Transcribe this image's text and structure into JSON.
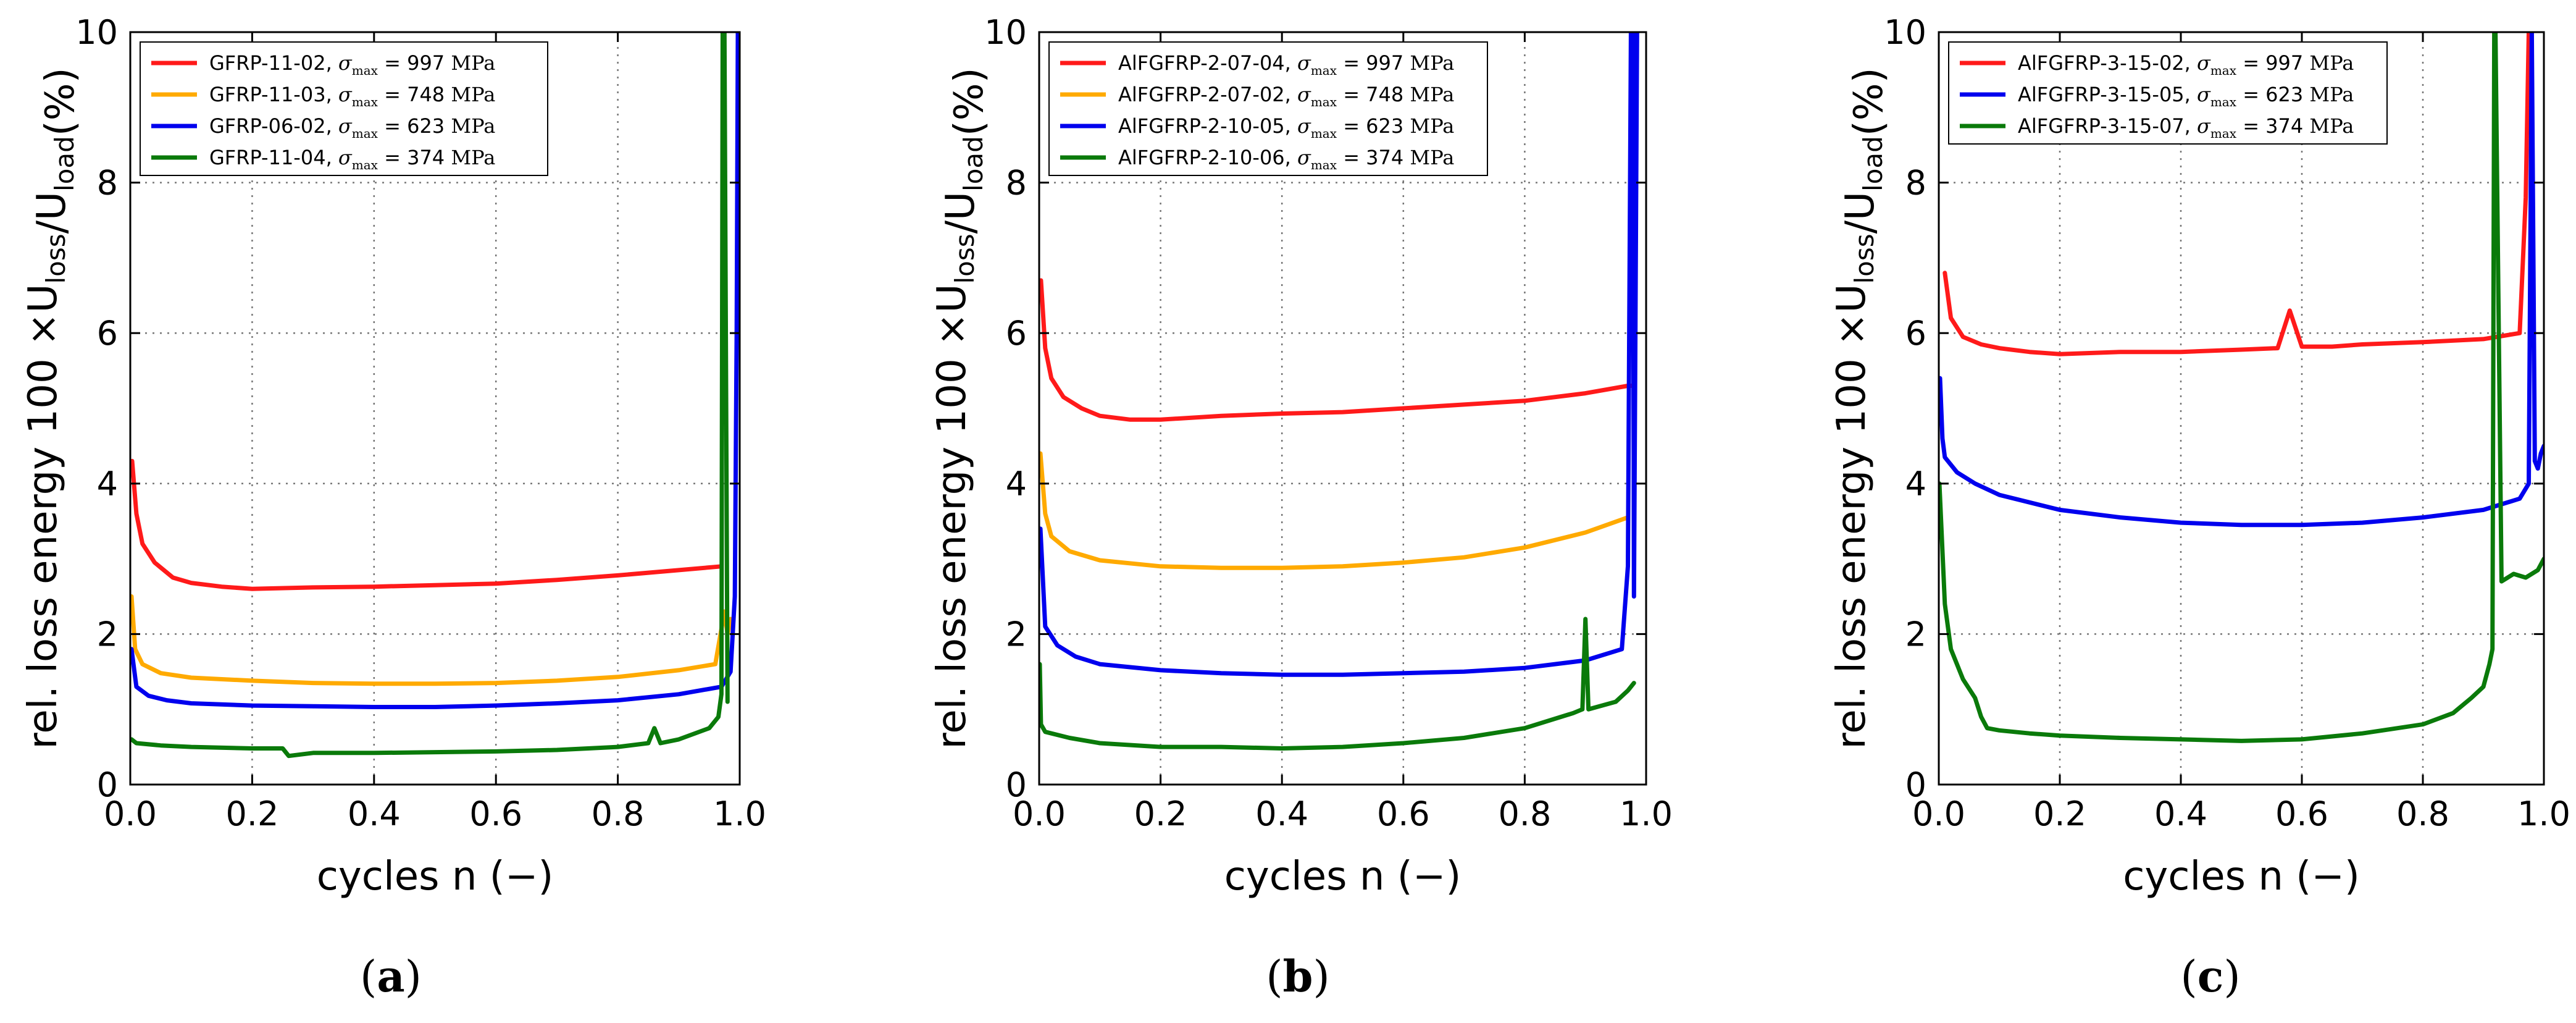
{
  "chart_data": [
    {
      "type": "line",
      "panel_label": "a",
      "xlabel": "cycles n (−)",
      "ylabel": "rel. loss energy 100 ×U_loss/U_load(%)",
      "xlim": [
        0.0,
        1.0
      ],
      "ylim": [
        0,
        10
      ],
      "xticks": [
        "0.0",
        "0.2",
        "0.4",
        "0.6",
        "0.8",
        "1.0"
      ],
      "yticks": [
        "0",
        "2",
        "4",
        "6",
        "8",
        "10"
      ],
      "grid": true,
      "legend_position": "top-left",
      "series": [
        {
          "name": "GFRP-11-02, σmax = 997 MPa",
          "specimen": "GFRP-11-02",
          "stress": "997 MPa",
          "color": "#ff1a1a",
          "x": [
            0.003,
            0.01,
            0.02,
            0.04,
            0.07,
            0.1,
            0.15,
            0.2,
            0.3,
            0.4,
            0.5,
            0.6,
            0.7,
            0.8,
            0.9,
            0.97
          ],
          "y": [
            4.3,
            3.6,
            3.2,
            2.95,
            2.75,
            2.68,
            2.63,
            2.6,
            2.62,
            2.63,
            2.65,
            2.67,
            2.72,
            2.78,
            2.85,
            2.9
          ]
        },
        {
          "name": "GFRP-11-03, σmax = 748 MPa",
          "specimen": "GFRP-11-03",
          "stress": "748 MPa",
          "color": "#ffaa00",
          "x": [
            0.002,
            0.008,
            0.02,
            0.05,
            0.1,
            0.2,
            0.3,
            0.4,
            0.5,
            0.6,
            0.7,
            0.8,
            0.9,
            0.96,
            0.975,
            0.98,
            0.985
          ],
          "y": [
            2.5,
            1.8,
            1.6,
            1.48,
            1.42,
            1.38,
            1.35,
            1.34,
            1.34,
            1.35,
            1.38,
            1.43,
            1.52,
            1.6,
            2.3,
            2.0,
            2.2
          ]
        },
        {
          "name": "GFRP-06-02, σmax = 623 MPa",
          "specimen": "GFRP-06-02",
          "stress": "623 MPa",
          "color": "#0000ee",
          "x": [
            0.002,
            0.01,
            0.03,
            0.06,
            0.1,
            0.2,
            0.3,
            0.4,
            0.5,
            0.6,
            0.7,
            0.8,
            0.9,
            0.97,
            0.985,
            0.992,
            0.995,
            0.997,
            1.0
          ],
          "y": [
            1.8,
            1.3,
            1.18,
            1.12,
            1.08,
            1.05,
            1.04,
            1.03,
            1.03,
            1.05,
            1.08,
            1.12,
            1.2,
            1.3,
            1.5,
            2.5,
            6.0,
            10.0,
            10.0
          ]
        },
        {
          "name": "GFRP-11-04, σmax = 374 MPa",
          "specimen": "GFRP-11-04",
          "stress": "374 MPa",
          "color": "#0a7a0a",
          "x": [
            0.002,
            0.01,
            0.05,
            0.1,
            0.2,
            0.25,
            0.26,
            0.3,
            0.4,
            0.5,
            0.6,
            0.7,
            0.8,
            0.85,
            0.86,
            0.87,
            0.9,
            0.95,
            0.965,
            0.97,
            0.972,
            0.975,
            0.98
          ],
          "y": [
            0.6,
            0.55,
            0.52,
            0.5,
            0.48,
            0.48,
            0.38,
            0.42,
            0.42,
            0.43,
            0.44,
            0.46,
            0.5,
            0.55,
            0.75,
            0.55,
            0.6,
            0.75,
            0.9,
            1.2,
            10.0,
            10.0,
            1.1
          ]
        }
      ]
    },
    {
      "type": "line",
      "panel_label": "b",
      "xlabel": "cycles n (−)",
      "ylabel": "rel. loss energy 100 ×U_loss/U_load(%)",
      "xlim": [
        0.0,
        1.0
      ],
      "ylim": [
        0,
        10
      ],
      "xticks": [
        "0.0",
        "0.2",
        "0.4",
        "0.6",
        "0.8",
        "1.0"
      ],
      "yticks": [
        "0",
        "2",
        "4",
        "6",
        "8",
        "10"
      ],
      "grid": true,
      "legend_position": "top-left",
      "series": [
        {
          "name": "AlFGFRP-2-07-04, σmax = 997 MPa",
          "specimen": "AlFGFRP-2-07-04",
          "stress": "997 MPa",
          "color": "#ff1a1a",
          "x": [
            0.003,
            0.01,
            0.02,
            0.04,
            0.07,
            0.1,
            0.15,
            0.2,
            0.3,
            0.4,
            0.5,
            0.6,
            0.7,
            0.8,
            0.9,
            0.97,
            0.98
          ],
          "y": [
            6.7,
            5.8,
            5.4,
            5.15,
            5.0,
            4.9,
            4.85,
            4.85,
            4.9,
            4.93,
            4.95,
            5.0,
            5.05,
            5.1,
            5.2,
            5.3,
            5.3
          ]
        },
        {
          "name": "AlFGFRP-2-07-02, σmax = 748 MPa",
          "specimen": "AlFGFRP-2-07-02",
          "stress": "748 MPa",
          "color": "#ffaa00",
          "x": [
            0.002,
            0.01,
            0.02,
            0.05,
            0.1,
            0.2,
            0.3,
            0.4,
            0.5,
            0.6,
            0.7,
            0.8,
            0.9,
            0.97
          ],
          "y": [
            4.4,
            3.6,
            3.3,
            3.1,
            2.98,
            2.9,
            2.88,
            2.88,
            2.9,
            2.95,
            3.02,
            3.15,
            3.35,
            3.55
          ]
        },
        {
          "name": "AlFGFRP-2-10-05, σmax = 623 MPa",
          "specimen": "AlFGFRP-2-10-05",
          "stress": "623 MPa",
          "color": "#0000ee",
          "x": [
            0.002,
            0.01,
            0.03,
            0.06,
            0.1,
            0.2,
            0.3,
            0.4,
            0.5,
            0.6,
            0.7,
            0.8,
            0.9,
            0.96,
            0.97,
            0.975,
            0.978,
            0.98,
            0.985
          ],
          "y": [
            3.4,
            2.1,
            1.85,
            1.7,
            1.6,
            1.52,
            1.48,
            1.46,
            1.46,
            1.48,
            1.5,
            1.55,
            1.65,
            1.8,
            2.9,
            10.0,
            10.0,
            2.5,
            10.0
          ]
        },
        {
          "name": "AlFGFRP-2-10-06, σmax = 374 MPa",
          "specimen": "AlFGFRP-2-10-06",
          "stress": "374 MPa",
          "color": "#0a7a0a",
          "x": [
            0.001,
            0.003,
            0.01,
            0.05,
            0.1,
            0.2,
            0.3,
            0.4,
            0.5,
            0.6,
            0.7,
            0.8,
            0.88,
            0.895,
            0.9,
            0.905,
            0.95,
            0.97,
            0.98
          ],
          "y": [
            1.6,
            0.8,
            0.7,
            0.62,
            0.55,
            0.5,
            0.5,
            0.48,
            0.5,
            0.55,
            0.62,
            0.75,
            0.95,
            1.0,
            2.2,
            1.0,
            1.1,
            1.25,
            1.35
          ]
        }
      ]
    },
    {
      "type": "line",
      "panel_label": "c",
      "xlabel": "cycles n (−)",
      "ylabel": "rel. loss energy 100 ×U_loss/U_load(%)",
      "xlim": [
        0.0,
        1.0
      ],
      "ylim": [
        0,
        10
      ],
      "xticks": [
        "0.0",
        "0.2",
        "0.4",
        "0.6",
        "0.8",
        "1.0"
      ],
      "yticks": [
        "0",
        "2",
        "4",
        "6",
        "8",
        "10"
      ],
      "grid": true,
      "legend_position": "top-left",
      "series": [
        {
          "name": "AlFGFRP-3-15-02, σmax = 997 MPa",
          "specimen": "AlFGFRP-3-15-02",
          "stress": "997 MPa",
          "color": "#ff1a1a",
          "x": [
            0.01,
            0.02,
            0.04,
            0.07,
            0.1,
            0.15,
            0.2,
            0.3,
            0.4,
            0.5,
            0.56,
            0.58,
            0.6,
            0.65,
            0.7,
            0.8,
            0.9,
            0.96,
            0.97,
            0.975
          ],
          "y": [
            6.8,
            6.2,
            5.95,
            5.85,
            5.8,
            5.75,
            5.72,
            5.75,
            5.75,
            5.78,
            5.8,
            6.3,
            5.82,
            5.82,
            5.85,
            5.88,
            5.92,
            6.0,
            7.8,
            10.0
          ]
        },
        {
          "name": "AlFGFRP-3-15-05, σmax = 623 MPa",
          "specimen": "AlFGFRP-3-15-05",
          "stress": "623 MPa",
          "color": "#0000ee",
          "x": [
            0.002,
            0.006,
            0.01,
            0.03,
            0.06,
            0.1,
            0.2,
            0.3,
            0.4,
            0.5,
            0.6,
            0.7,
            0.8,
            0.9,
            0.96,
            0.975,
            0.98,
            0.985,
            0.99,
            0.995,
            1.0
          ],
          "y": [
            5.4,
            4.6,
            4.35,
            4.15,
            4.0,
            3.85,
            3.65,
            3.55,
            3.48,
            3.45,
            3.45,
            3.48,
            3.55,
            3.65,
            3.8,
            4.0,
            10.0,
            4.3,
            4.2,
            4.4,
            4.5
          ]
        },
        {
          "name": "AlFGFRP-3-15-07, σmax = 374 MPa",
          "specimen": "AlFGFRP-3-15-07",
          "stress": "374 MPa",
          "color": "#0a7a0a",
          "x": [
            0.001,
            0.01,
            0.02,
            0.04,
            0.06,
            0.07,
            0.08,
            0.1,
            0.15,
            0.2,
            0.3,
            0.4,
            0.5,
            0.6,
            0.7,
            0.8,
            0.85,
            0.88,
            0.9,
            0.91,
            0.915,
            0.918,
            0.92,
            0.93,
            0.95,
            0.97,
            0.99,
            1.0
          ],
          "y": [
            4.0,
            2.4,
            1.8,
            1.4,
            1.15,
            0.9,
            0.75,
            0.72,
            0.68,
            0.65,
            0.62,
            0.6,
            0.58,
            0.6,
            0.68,
            0.8,
            0.95,
            1.15,
            1.3,
            1.6,
            1.8,
            10.0,
            10.0,
            2.7,
            2.8,
            2.75,
            2.85,
            3.0
          ]
        }
      ]
    }
  ]
}
